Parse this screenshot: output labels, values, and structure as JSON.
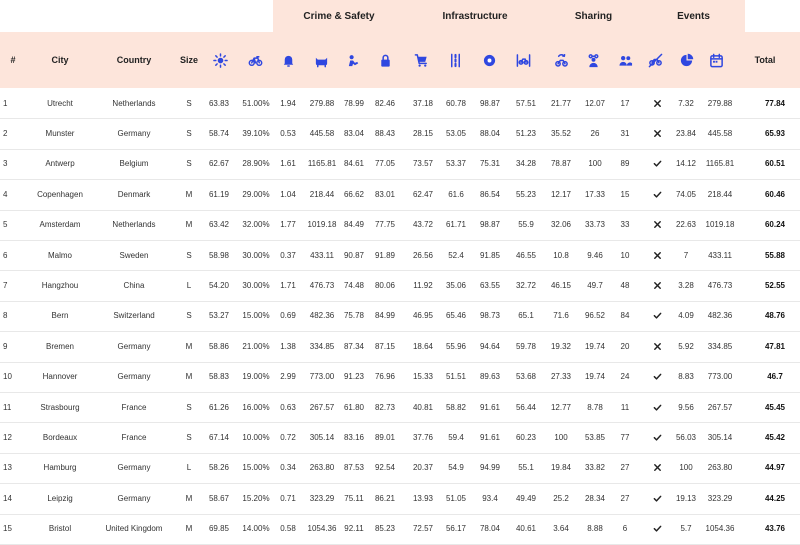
{
  "groups": {
    "crime_safety": "Crime & Safety",
    "infrastructure": "Infrastructure",
    "sharing": "Sharing",
    "events": "Events"
  },
  "headers": {
    "rank": "#",
    "city": "City",
    "country": "Country",
    "size": "Size",
    "total": "Total"
  },
  "icons": [
    "sun-icon",
    "bicycle-icon",
    "bell-icon",
    "cat-icon",
    "thief-icon",
    "lock-icon",
    "cart-icon",
    "lanes-icon",
    "gear-icon",
    "bike-lane-icon",
    "bike-share-icon",
    "group-icon",
    "people-icon",
    "no-bike-icon",
    "pie-chart-icon",
    "calendar-icon"
  ],
  "accent_color": "#2f47e0",
  "header_background": "#fde5db",
  "rows": [
    {
      "rank": "1",
      "city": "Utrecht",
      "country": "Netherlands",
      "size": "S",
      "v": [
        "63.83",
        "51.00%",
        "1.94",
        "279.88",
        "78.99",
        "82.46",
        "37.18",
        "60.78",
        "98.87",
        "57.51",
        "21.77",
        "12.07",
        "17"
      ],
      "event": "x",
      "e1": "7.32",
      "e2": "279.88",
      "total": "77.84"
    },
    {
      "rank": "2",
      "city": "Munster",
      "country": "Germany",
      "size": "S",
      "v": [
        "58.74",
        "39.10%",
        "0.53",
        "445.58",
        "83.04",
        "88.43",
        "28.15",
        "53.05",
        "88.04",
        "51.23",
        "35.52",
        "26",
        "31"
      ],
      "event": "x",
      "e1": "23.84",
      "e2": "445.58",
      "total": "65.93"
    },
    {
      "rank": "3",
      "city": "Antwerp",
      "country": "Belgium",
      "size": "S",
      "v": [
        "62.67",
        "28.90%",
        "1.61",
        "1165.81",
        "84.61",
        "77.05",
        "73.57",
        "53.37",
        "75.31",
        "34.28",
        "78.87",
        "100",
        "89"
      ],
      "event": "check",
      "e1": "14.12",
      "e2": "1165.81",
      "total": "60.51"
    },
    {
      "rank": "4",
      "city": "Copenhagen",
      "country": "Denmark",
      "size": "M",
      "v": [
        "61.19",
        "29.00%",
        "1.04",
        "218.44",
        "66.62",
        "83.01",
        "62.47",
        "61.6",
        "86.54",
        "55.23",
        "12.17",
        "17.33",
        "15"
      ],
      "event": "check",
      "e1": "74.05",
      "e2": "218.44",
      "total": "60.46"
    },
    {
      "rank": "5",
      "city": "Amsterdam",
      "country": "Netherlands",
      "size": "M",
      "v": [
        "63.42",
        "32.00%",
        "1.77",
        "1019.18",
        "84.49",
        "77.75",
        "43.72",
        "61.71",
        "98.87",
        "55.9",
        "32.06",
        "33.73",
        "33"
      ],
      "event": "x",
      "e1": "22.63",
      "e2": "1019.18",
      "total": "60.24"
    },
    {
      "rank": "6",
      "city": "Malmo",
      "country": "Sweden",
      "size": "S",
      "v": [
        "58.98",
        "30.00%",
        "0.37",
        "433.11",
        "90.87",
        "91.89",
        "26.56",
        "52.4",
        "91.85",
        "46.55",
        "10.8",
        "9.46",
        "10"
      ],
      "event": "x",
      "e1": "7",
      "e2": "433.11",
      "total": "55.88"
    },
    {
      "rank": "7",
      "city": "Hangzhou",
      "country": "China",
      "size": "L",
      "v": [
        "54.20",
        "30.00%",
        "1.71",
        "476.73",
        "74.48",
        "80.06",
        "11.92",
        "35.06",
        "63.55",
        "32.72",
        "46.15",
        "49.7",
        "48"
      ],
      "event": "x",
      "e1": "3.28",
      "e2": "476.73",
      "total": "52.55"
    },
    {
      "rank": "8",
      "city": "Bern",
      "country": "Switzerland",
      "size": "S",
      "v": [
        "53.27",
        "15.00%",
        "0.69",
        "482.36",
        "75.78",
        "84.99",
        "46.95",
        "65.46",
        "98.73",
        "65.1",
        "71.6",
        "96.52",
        "84"
      ],
      "event": "check",
      "e1": "4.09",
      "e2": "482.36",
      "total": "48.76"
    },
    {
      "rank": "9",
      "city": "Bremen",
      "country": "Germany",
      "size": "M",
      "v": [
        "58.86",
        "21.00%",
        "1.38",
        "334.85",
        "87.34",
        "87.15",
        "18.64",
        "55.96",
        "94.64",
        "59.78",
        "19.32",
        "19.74",
        "20"
      ],
      "event": "x",
      "e1": "5.92",
      "e2": "334.85",
      "total": "47.81"
    },
    {
      "rank": "10",
      "city": "Hannover",
      "country": "Germany",
      "size": "M",
      "v": [
        "58.83",
        "19.00%",
        "2.99",
        "773.00",
        "91.23",
        "76.96",
        "15.33",
        "51.51",
        "89.63",
        "53.68",
        "27.33",
        "19.74",
        "24"
      ],
      "event": "check",
      "e1": "8.83",
      "e2": "773.00",
      "total": "46.7"
    },
    {
      "rank": "11",
      "city": "Strasbourg",
      "country": "France",
      "size": "S",
      "v": [
        "61.26",
        "16.00%",
        "0.63",
        "267.57",
        "61.80",
        "82.73",
        "40.81",
        "58.82",
        "91.61",
        "56.44",
        "12.77",
        "8.78",
        "11"
      ],
      "event": "check",
      "e1": "9.56",
      "e2": "267.57",
      "total": "45.45"
    },
    {
      "rank": "12",
      "city": "Bordeaux",
      "country": "France",
      "size": "S",
      "v": [
        "67.14",
        "10.00%",
        "0.72",
        "305.14",
        "83.16",
        "89.01",
        "37.76",
        "59.4",
        "91.61",
        "60.23",
        "100",
        "53.85",
        "77"
      ],
      "event": "check",
      "e1": "56.03",
      "e2": "305.14",
      "total": "45.42"
    },
    {
      "rank": "13",
      "city": "Hamburg",
      "country": "Germany",
      "size": "L",
      "v": [
        "58.26",
        "15.00%",
        "0.34",
        "263.80",
        "87.53",
        "92.54",
        "20.37",
        "54.9",
        "94.99",
        "55.1",
        "19.84",
        "33.82",
        "27"
      ],
      "event": "x",
      "e1": "100",
      "e2": "263.80",
      "total": "44.97"
    },
    {
      "rank": "14",
      "city": "Leipzig",
      "country": "Germany",
      "size": "M",
      "v": [
        "58.67",
        "15.20%",
        "0.71",
        "323.29",
        "75.11",
        "86.21",
        "13.93",
        "51.05",
        "93.4",
        "49.49",
        "25.2",
        "28.34",
        "27"
      ],
      "event": "check",
      "e1": "19.13",
      "e2": "323.29",
      "total": "44.25"
    },
    {
      "rank": "15",
      "city": "Bristol",
      "country": "United Kingdom",
      "size": "M",
      "v": [
        "69.85",
        "14.00%",
        "0.58",
        "1054.36",
        "92.11",
        "85.23",
        "72.57",
        "56.17",
        "78.04",
        "40.61",
        "3.64",
        "8.88",
        "6"
      ],
      "event": "check",
      "e1": "5.7",
      "e2": "1054.36",
      "total": "43.76"
    }
  ]
}
